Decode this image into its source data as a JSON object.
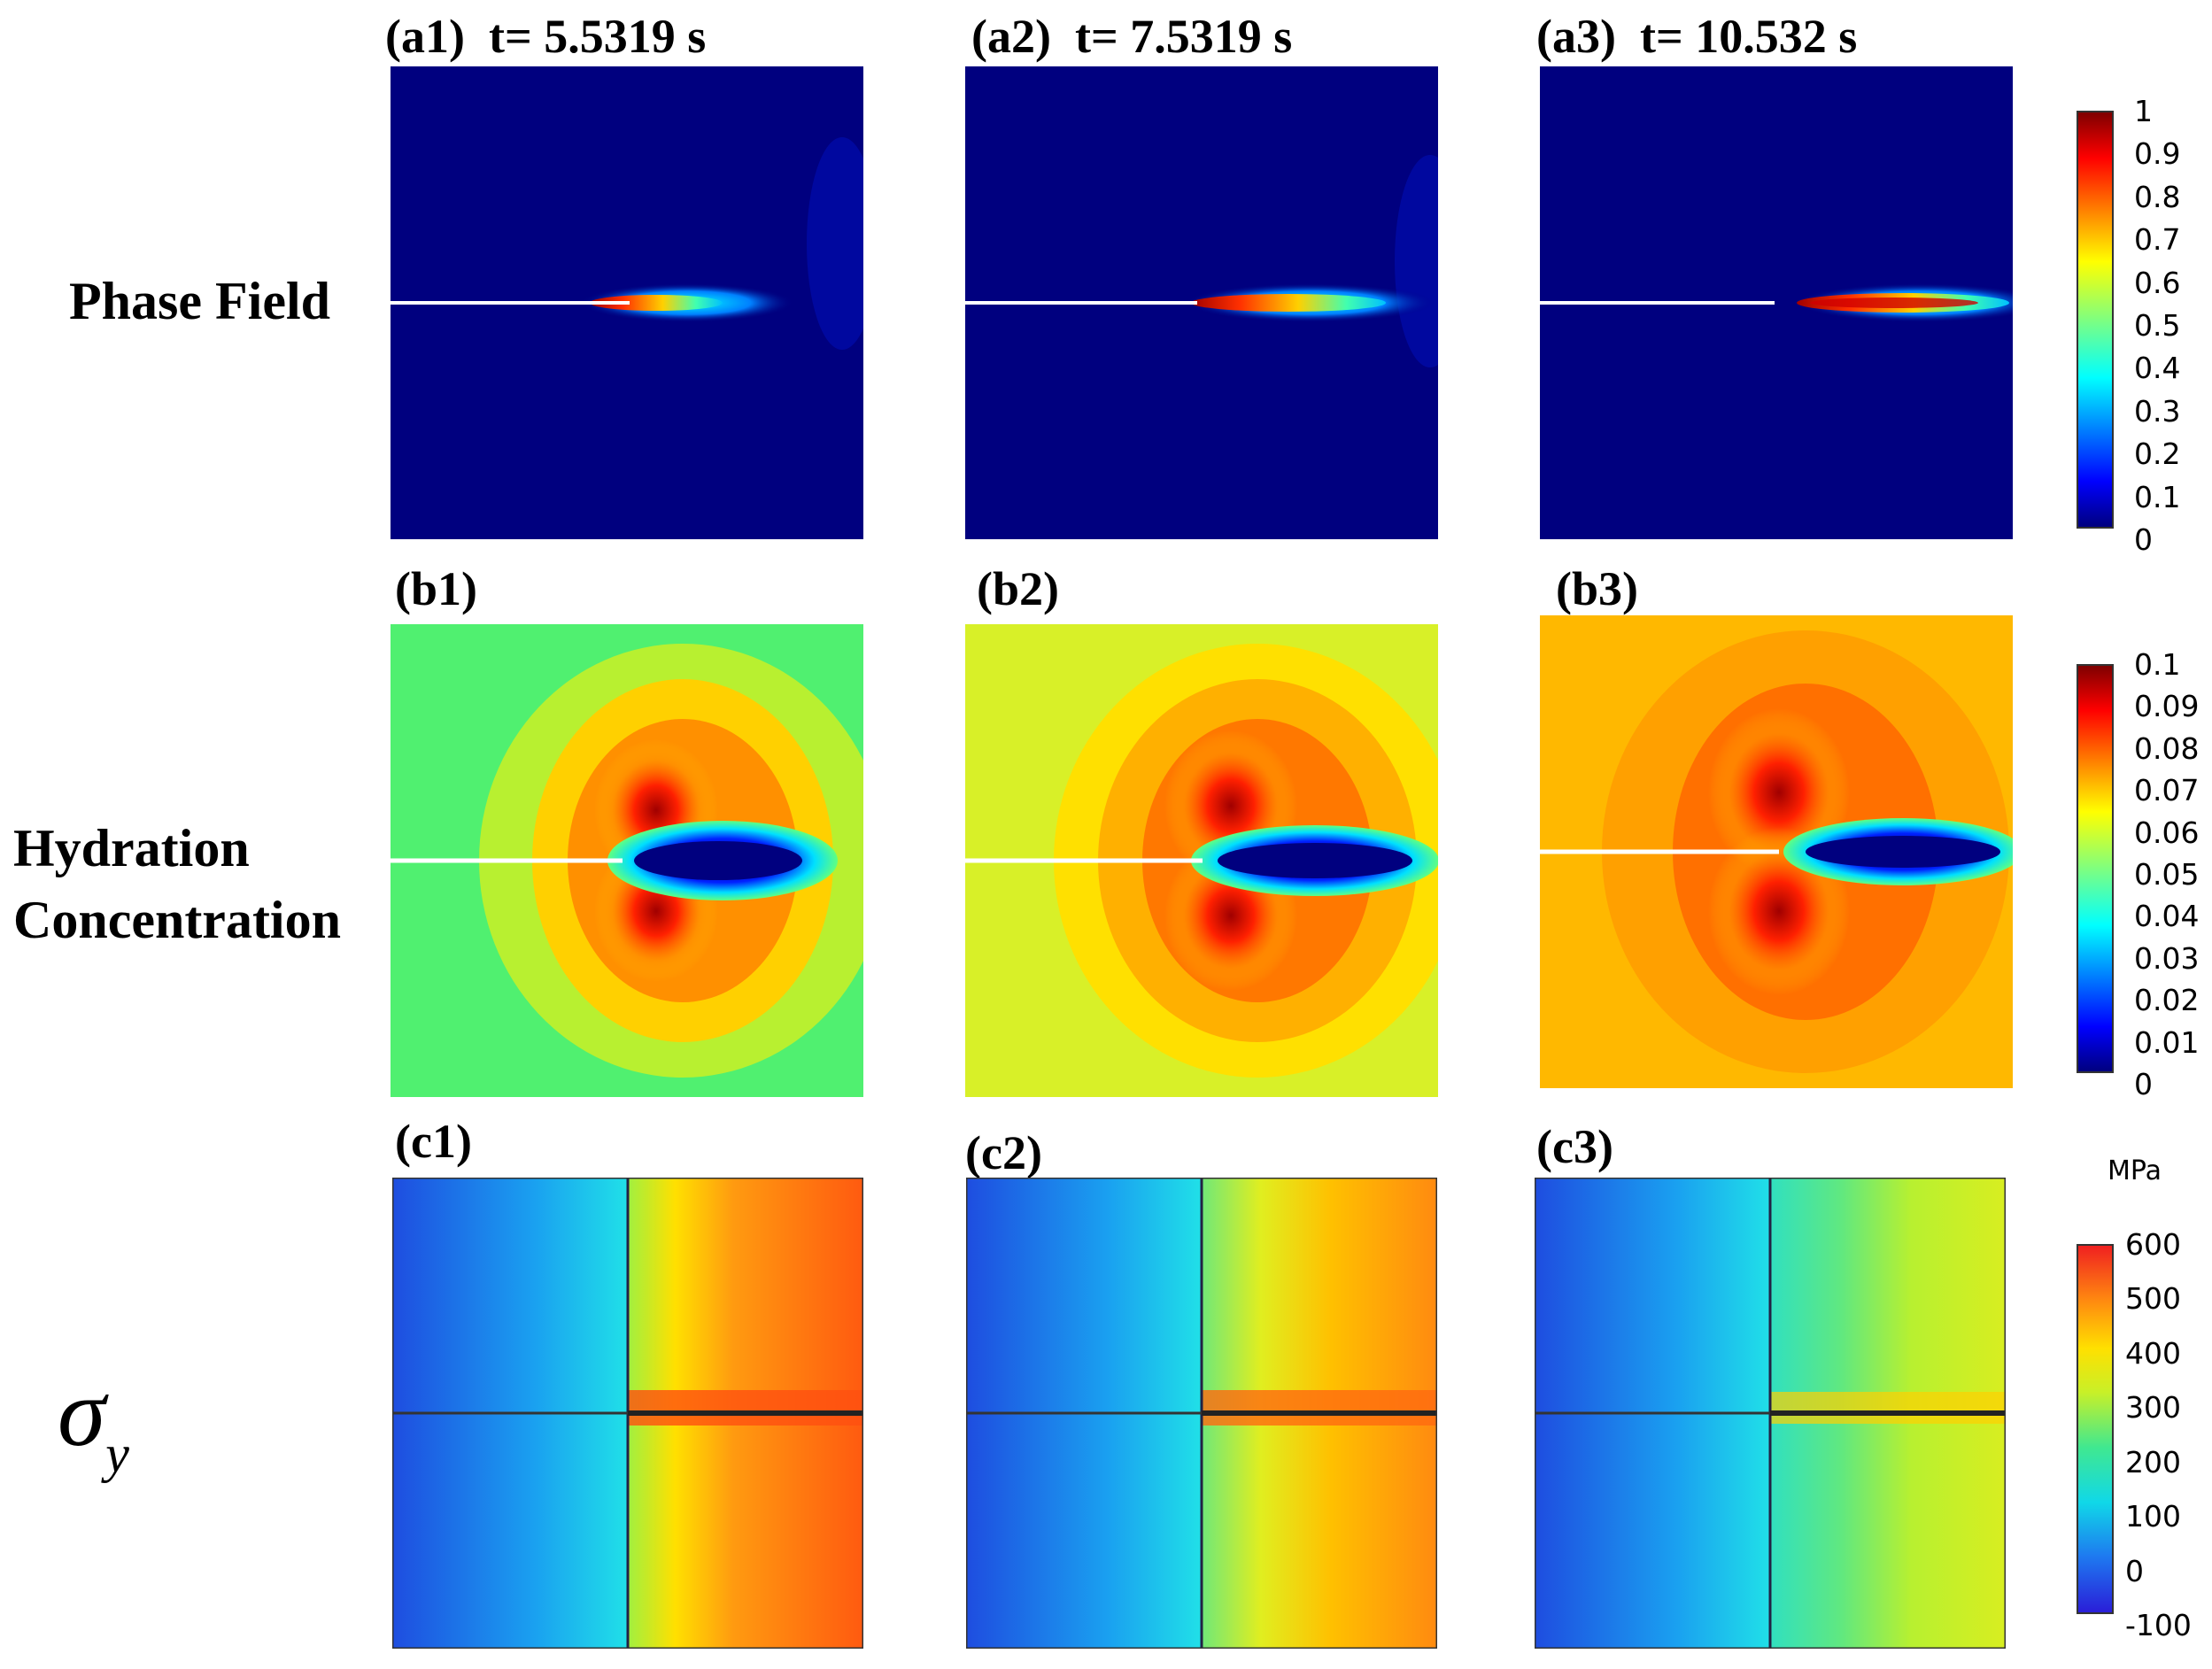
{
  "figure": {
    "rows": [
      {
        "label": "Phase Field",
        "panels": [
          {
            "label": "(a1)",
            "time": "t= 5.5319 s"
          },
          {
            "label": "(a2)",
            "time": "t= 7.5319 s"
          },
          {
            "label": "(a3)",
            "time": "t= 10.532 s"
          }
        ],
        "colorbar": {
          "ticks": [
            "1",
            "0.9",
            "0.8",
            "0.7",
            "0.6",
            "0.5",
            "0.4",
            "0.3",
            "0.2",
            "0.1",
            "0"
          ]
        }
      },
      {
        "label_line1": "Hydration",
        "label_line2": "Concentration",
        "panels": [
          {
            "label": "(b1)"
          },
          {
            "label": "(b2)"
          },
          {
            "label": "(b3)"
          }
        ],
        "colorbar": {
          "ticks": [
            "0.1",
            "0.09",
            "0.08",
            "0.07",
            "0.06",
            "0.05",
            "0.04",
            "0.03",
            "0.02",
            "0.01",
            "0"
          ]
        }
      },
      {
        "symbol": "σ",
        "subscript": "y",
        "panels": [
          {
            "label": "(c1)"
          },
          {
            "label": "(c2)"
          },
          {
            "label": "(c3)"
          }
        ],
        "colorbar": {
          "unit": "MPa",
          "ticks": [
            "600",
            "500",
            "400",
            "300",
            "200",
            "100",
            "0",
            "-100"
          ]
        }
      }
    ],
    "colors": {
      "jet_low": "#00007f",
      "jet_high": "#7f0000",
      "crack_line": "#ffffff"
    }
  }
}
